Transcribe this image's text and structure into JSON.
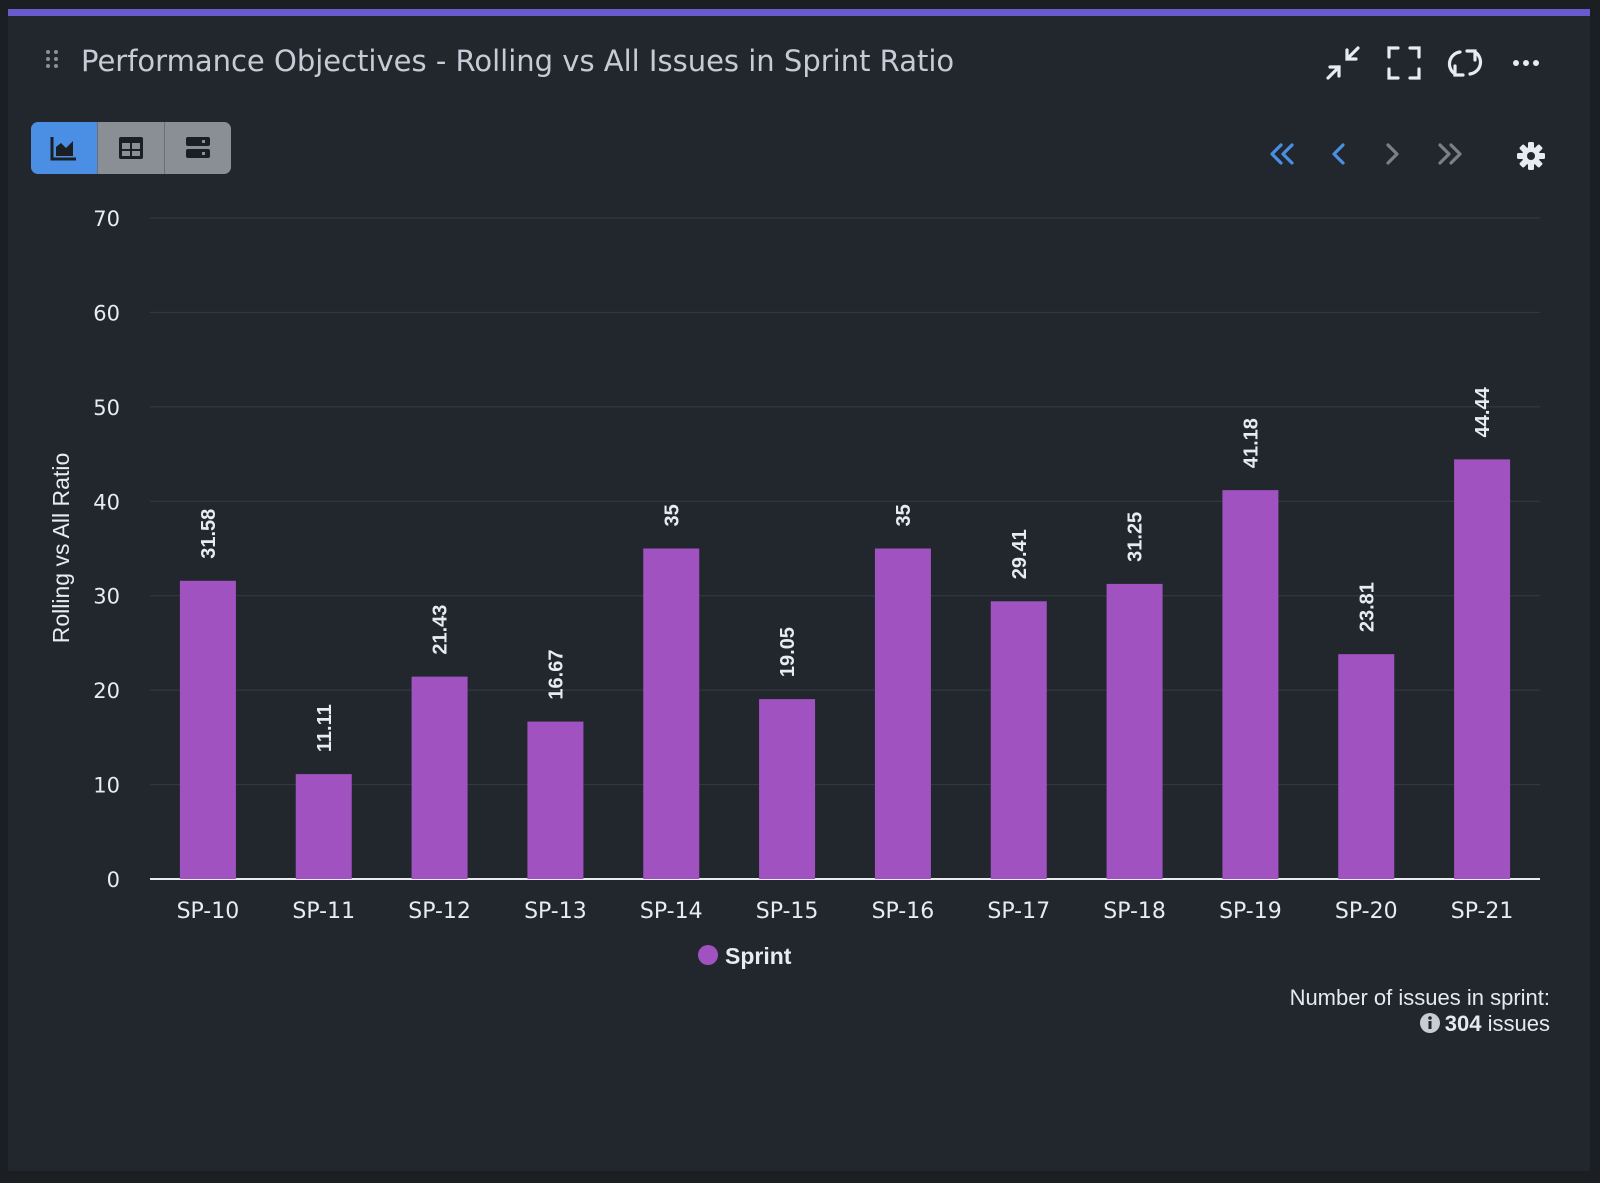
{
  "header": {
    "title": "Performance Objectives - Rolling vs All Issues in Sprint Ratio",
    "icons": [
      "drag-handle-icon",
      "collapse-icon",
      "fullscreen-icon",
      "refresh-icon",
      "more-icon"
    ]
  },
  "view_toggle": {
    "options": [
      "chart-view-icon",
      "table-view-icon",
      "list-view-icon"
    ],
    "active": "chart-view-icon"
  },
  "pagination": {
    "icons": [
      "first-page-icon",
      "previous-page-icon",
      "next-page-icon",
      "last-page-icon",
      "settings-icon"
    ]
  },
  "colors": {
    "accent_bar": "#6a5acd",
    "series": "#a052c0",
    "active_toggle": "#4a8fe3",
    "nav_enabled": "#4a8fe3",
    "nav_disabled": "#7a8089"
  },
  "chart_data": {
    "type": "bar",
    "categories": [
      "SP-10",
      "SP-11",
      "SP-12",
      "SP-13",
      "SP-14",
      "SP-15",
      "SP-16",
      "SP-17",
      "SP-18",
      "SP-19",
      "SP-20",
      "SP-21"
    ],
    "series": [
      {
        "name": "Sprint",
        "values": [
          31.58,
          11.11,
          21.43,
          16.67,
          35,
          19.05,
          35,
          29.41,
          31.25,
          41.18,
          23.81,
          44.44
        ]
      }
    ],
    "data_labels": [
      "31.58",
      "11.11",
      "21.43",
      "16.67",
      "35",
      "19.05",
      "35",
      "29.41",
      "31.25",
      "41.18",
      "23.81",
      "44.44"
    ],
    "ylabel": "Rolling vs All Ratio",
    "xlabel": "",
    "ylim": [
      0,
      70
    ],
    "yticks": [
      "0",
      "10",
      "20",
      "30",
      "40",
      "50",
      "60",
      "70"
    ],
    "grid": true,
    "legend": "bottom-center"
  },
  "footer": {
    "label": "Number of issues in sprint:",
    "count": "304",
    "unit": "issues"
  }
}
